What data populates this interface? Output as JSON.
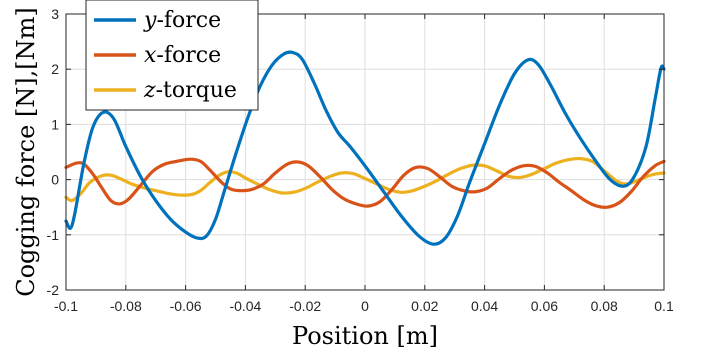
{
  "chart_data": {
    "type": "line",
    "xlabel": "Position [m]",
    "ylabel": "Cogging force [N],[Nm]",
    "xlim": [
      -0.1,
      0.1
    ],
    "ylim": [
      -2,
      3
    ],
    "x_ticks": [
      -0.1,
      -0.08,
      -0.06,
      -0.04,
      -0.02,
      0,
      0.02,
      0.04,
      0.06,
      0.08,
      0.1
    ],
    "x_tick_labels": [
      "-0.1",
      "-0.08",
      "-0.06",
      "-0.04",
      "-0.02",
      "0",
      "0.02",
      "0.04",
      "0.06",
      "0.08",
      "0.1"
    ],
    "y_ticks": [
      -2,
      -1,
      0,
      1,
      2,
      3
    ],
    "y_tick_labels": [
      "-2",
      "-1",
      "0",
      "1",
      "2",
      "3"
    ],
    "grid": true,
    "legend_position": "top-left",
    "series": [
      {
        "name": "y-force",
        "legend_var": "y",
        "legend_suffix": "-force",
        "color": "#0072BD",
        "points": [
          [
            -0.1,
            -0.75
          ],
          [
            -0.0985,
            -0.88
          ],
          [
            -0.097,
            -0.6
          ],
          [
            -0.094,
            0.3
          ],
          [
            -0.091,
            0.95
          ],
          [
            -0.0875,
            1.22
          ],
          [
            -0.084,
            1.1
          ],
          [
            -0.08,
            0.6
          ],
          [
            -0.075,
            0.05
          ],
          [
            -0.07,
            -0.38
          ],
          [
            -0.065,
            -0.72
          ],
          [
            -0.06,
            -0.95
          ],
          [
            -0.056,
            -1.06
          ],
          [
            -0.053,
            -1.02
          ],
          [
            -0.05,
            -0.72
          ],
          [
            -0.047,
            -0.2
          ],
          [
            -0.043,
            0.5
          ],
          [
            -0.039,
            1.15
          ],
          [
            -0.035,
            1.7
          ],
          [
            -0.031,
            2.08
          ],
          [
            -0.027,
            2.28
          ],
          [
            -0.024,
            2.3
          ],
          [
            -0.021,
            2.18
          ],
          [
            -0.017,
            1.75
          ],
          [
            -0.013,
            1.25
          ],
          [
            -0.009,
            0.85
          ],
          [
            -0.005,
            0.6
          ],
          [
            0.0,
            0.25
          ],
          [
            0.006,
            -0.2
          ],
          [
            0.012,
            -0.65
          ],
          [
            0.018,
            -1.02
          ],
          [
            0.023,
            -1.17
          ],
          [
            0.027,
            -1.05
          ],
          [
            0.031,
            -0.65
          ],
          [
            0.035,
            -0.05
          ],
          [
            0.04,
            0.65
          ],
          [
            0.045,
            1.35
          ],
          [
            0.05,
            1.92
          ],
          [
            0.0545,
            2.17
          ],
          [
            0.058,
            2.08
          ],
          [
            0.062,
            1.72
          ],
          [
            0.067,
            1.2
          ],
          [
            0.072,
            0.75
          ],
          [
            0.077,
            0.35
          ],
          [
            0.082,
            0.0
          ],
          [
            0.0865,
            -0.12
          ],
          [
            0.09,
            0.05
          ],
          [
            0.094,
            0.6
          ],
          [
            0.097,
            1.45
          ],
          [
            0.099,
            2.02
          ],
          [
            0.1,
            2.0
          ]
        ]
      },
      {
        "name": "x-force",
        "legend_var": "x",
        "legend_suffix": "-force",
        "color": "#D95319",
        "points": [
          [
            -0.1,
            0.22
          ],
          [
            -0.0965,
            0.3
          ],
          [
            -0.094,
            0.28
          ],
          [
            -0.091,
            0.1
          ],
          [
            -0.088,
            -0.15
          ],
          [
            -0.085,
            -0.38
          ],
          [
            -0.082,
            -0.44
          ],
          [
            -0.079,
            -0.35
          ],
          [
            -0.075,
            -0.1
          ],
          [
            -0.071,
            0.15
          ],
          [
            -0.067,
            0.28
          ],
          [
            -0.063,
            0.33
          ],
          [
            -0.0585,
            0.37
          ],
          [
            -0.055,
            0.33
          ],
          [
            -0.052,
            0.18
          ],
          [
            -0.048,
            -0.05
          ],
          [
            -0.045,
            -0.17
          ],
          [
            -0.042,
            -0.2
          ],
          [
            -0.038,
            -0.18
          ],
          [
            -0.034,
            -0.08
          ],
          [
            -0.03,
            0.12
          ],
          [
            -0.026,
            0.28
          ],
          [
            -0.0225,
            0.32
          ],
          [
            -0.019,
            0.25
          ],
          [
            -0.015,
            0.05
          ],
          [
            -0.011,
            -0.18
          ],
          [
            -0.007,
            -0.35
          ],
          [
            -0.003,
            -0.44
          ],
          [
            0.001,
            -0.48
          ],
          [
            0.005,
            -0.4
          ],
          [
            0.009,
            -0.18
          ],
          [
            0.013,
            0.08
          ],
          [
            0.017,
            0.22
          ],
          [
            0.021,
            0.2
          ],
          [
            0.025,
            0.05
          ],
          [
            0.029,
            -0.12
          ],
          [
            0.033,
            -0.2
          ],
          [
            0.037,
            -0.22
          ],
          [
            0.041,
            -0.15
          ],
          [
            0.045,
            0.02
          ],
          [
            0.049,
            0.17
          ],
          [
            0.053,
            0.25
          ],
          [
            0.057,
            0.24
          ],
          [
            0.061,
            0.12
          ],
          [
            0.065,
            -0.05
          ],
          [
            0.069,
            -0.2
          ],
          [
            0.073,
            -0.36
          ],
          [
            0.077,
            -0.47
          ],
          [
            0.081,
            -0.5
          ],
          [
            0.085,
            -0.42
          ],
          [
            0.089,
            -0.22
          ],
          [
            0.093,
            0.05
          ],
          [
            0.097,
            0.25
          ],
          [
            0.1,
            0.33
          ]
        ]
      },
      {
        "name": "z-torque",
        "legend_var": "z",
        "legend_suffix": "-torque",
        "color": "#EDB120",
        "points": [
          [
            -0.1,
            -0.32
          ],
          [
            -0.098,
            -0.38
          ],
          [
            -0.095,
            -0.25
          ],
          [
            -0.092,
            -0.05
          ],
          [
            -0.088,
            0.07
          ],
          [
            -0.085,
            0.08
          ],
          [
            -0.082,
            0.02
          ],
          [
            -0.078,
            -0.08
          ],
          [
            -0.074,
            -0.15
          ],
          [
            -0.07,
            -0.2
          ],
          [
            -0.066,
            -0.25
          ],
          [
            -0.062,
            -0.28
          ],
          [
            -0.058,
            -0.27
          ],
          [
            -0.055,
            -0.2
          ],
          [
            -0.052,
            -0.06
          ],
          [
            -0.049,
            0.07
          ],
          [
            -0.046,
            0.14
          ],
          [
            -0.043,
            0.12
          ],
          [
            -0.04,
            0.03
          ],
          [
            -0.036,
            -0.08
          ],
          [
            -0.032,
            -0.18
          ],
          [
            -0.028,
            -0.24
          ],
          [
            -0.024,
            -0.23
          ],
          [
            -0.02,
            -0.16
          ],
          [
            -0.016,
            -0.05
          ],
          [
            -0.012,
            0.05
          ],
          [
            -0.008,
            0.12
          ],
          [
            -0.004,
            0.11
          ],
          [
            0.0,
            0.02
          ],
          [
            0.004,
            -0.08
          ],
          [
            0.008,
            -0.18
          ],
          [
            0.012,
            -0.23
          ],
          [
            0.016,
            -0.2
          ],
          [
            0.02,
            -0.12
          ],
          [
            0.024,
            -0.02
          ],
          [
            0.028,
            0.1
          ],
          [
            0.032,
            0.2
          ],
          [
            0.036,
            0.26
          ],
          [
            0.04,
            0.25
          ],
          [
            0.044,
            0.16
          ],
          [
            0.048,
            0.06
          ],
          [
            0.052,
            0.04
          ],
          [
            0.056,
            0.1
          ],
          [
            0.06,
            0.2
          ],
          [
            0.064,
            0.3
          ],
          [
            0.068,
            0.36
          ],
          [
            0.072,
            0.38
          ],
          [
            0.076,
            0.33
          ],
          [
            0.08,
            0.16
          ],
          [
            0.084,
            -0.02
          ],
          [
            0.087,
            -0.08
          ],
          [
            0.09,
            -0.04
          ],
          [
            0.094,
            0.05
          ],
          [
            0.097,
            0.1
          ],
          [
            0.1,
            0.12
          ]
        ]
      }
    ]
  }
}
